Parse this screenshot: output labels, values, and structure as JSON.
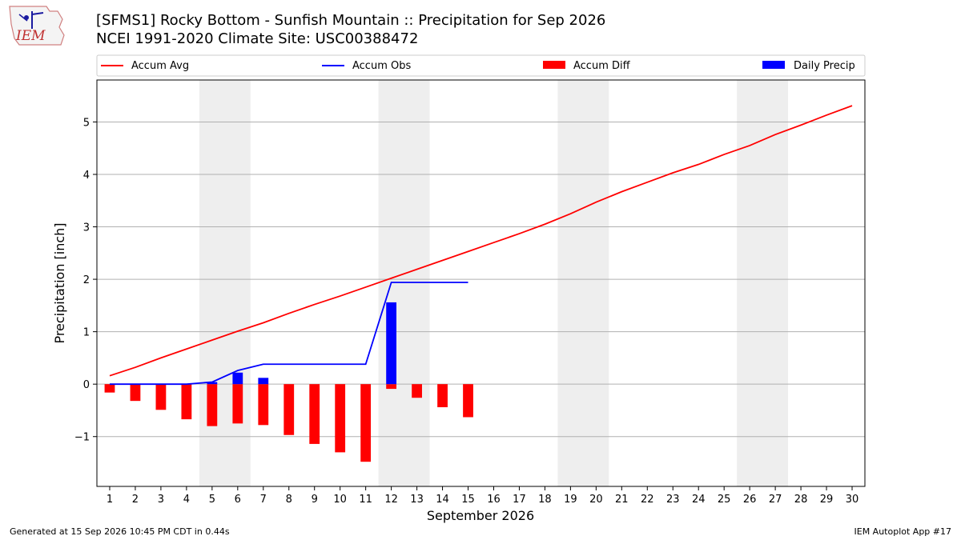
{
  "chart_data": {
    "type": "bar",
    "title": "[SFMS1] Rocky Bottom - Sunfish Mountain :: Precipitation for Sep 2026",
    "subtitle": "NCEI 1991-2020 Climate Site: USC00388472",
    "xlabel": "September 2026",
    "ylabel": "Precipitation [inch]",
    "xlim": [
      0.5,
      30.5
    ],
    "ylim": [
      -1.95,
      5.8
    ],
    "yticks": [
      -1,
      0,
      1,
      2,
      3,
      4,
      5
    ],
    "ytick_labels": [
      "−1",
      "0",
      "1",
      "2",
      "3",
      "4",
      "5"
    ],
    "x_ticks": [
      1,
      2,
      3,
      4,
      5,
      6,
      7,
      8,
      9,
      10,
      11,
      12,
      13,
      14,
      15,
      16,
      17,
      18,
      19,
      20,
      21,
      22,
      23,
      24,
      25,
      26,
      27,
      28,
      29,
      30
    ],
    "grid": "horizontal",
    "legend_position": "top",
    "weekend_bands": [
      [
        4.5,
        6.5
      ],
      [
        11.5,
        13.5
      ],
      [
        18.5,
        20.5
      ],
      [
        25.5,
        27.5
      ]
    ],
    "series": [
      {
        "name": "Accum Avg",
        "kind": "line",
        "color": "#ff0000",
        "x": [
          1,
          2,
          3,
          4,
          5,
          6,
          7,
          8,
          9,
          10,
          11,
          12,
          13,
          14,
          15,
          16,
          17,
          18,
          19,
          20,
          21,
          22,
          23,
          24,
          25,
          26,
          27,
          28,
          29,
          30
        ],
        "values": [
          0.16,
          0.32,
          0.5,
          0.67,
          0.84,
          1.01,
          1.17,
          1.35,
          1.52,
          1.68,
          1.85,
          2.02,
          2.19,
          2.36,
          2.53,
          2.7,
          2.87,
          3.05,
          3.25,
          3.47,
          3.67,
          3.85,
          4.03,
          4.19,
          4.38,
          4.55,
          4.76,
          4.94,
          5.13,
          5.31
        ]
      },
      {
        "name": "Accum Obs",
        "kind": "line",
        "color": "#0000ff",
        "x": [
          1,
          2,
          3,
          4,
          5,
          6,
          7,
          8,
          9,
          10,
          11,
          12,
          13,
          14,
          15
        ],
        "values": [
          0.0,
          0.0,
          0.0,
          0.0,
          0.04,
          0.26,
          0.38,
          0.38,
          0.38,
          0.38,
          0.38,
          1.94,
          1.94,
          1.94,
          1.94
        ]
      },
      {
        "name": "Accum Diff",
        "kind": "bar",
        "color": "#ff0000",
        "x": [
          1,
          2,
          3,
          4,
          5,
          6,
          7,
          8,
          9,
          10,
          11,
          12,
          13,
          14,
          15
        ],
        "values": [
          -0.16,
          -0.32,
          -0.49,
          -0.67,
          -0.8,
          -0.75,
          -0.78,
          -0.97,
          -1.14,
          -1.3,
          -1.48,
          -0.09,
          -0.26,
          -0.44,
          -0.63
        ]
      },
      {
        "name": "Daily Precip",
        "kind": "bar",
        "color": "#0000ff",
        "x": [
          1,
          2,
          3,
          4,
          5,
          6,
          7,
          8,
          9,
          10,
          11,
          12,
          13,
          14,
          15
        ],
        "values": [
          0,
          0,
          0,
          0,
          0.04,
          0.22,
          0.12,
          0,
          0,
          0,
          0,
          1.56,
          0,
          0,
          0
        ]
      }
    ]
  },
  "logo": {
    "text": "IEM"
  },
  "footer": {
    "left": "Generated at 15 Sep 2026 10:45 PM CDT in 0.44s",
    "right": "IEM Autoplot App #17"
  }
}
